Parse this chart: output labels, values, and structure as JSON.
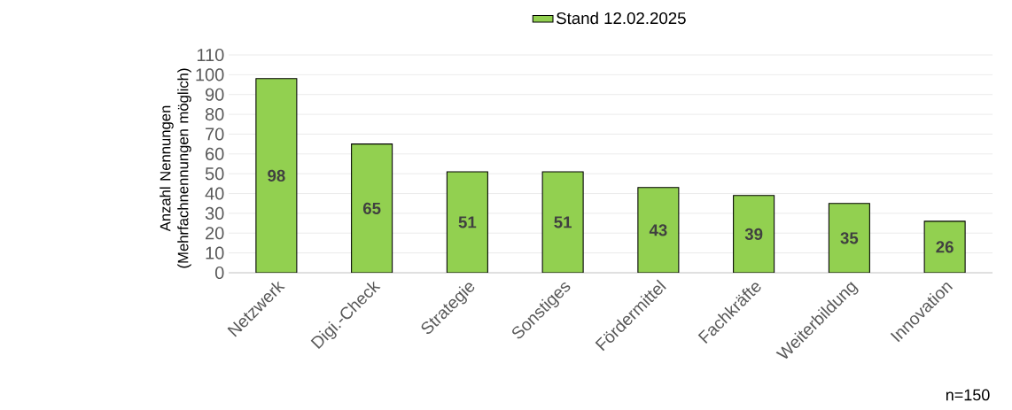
{
  "chart_data": {
    "type": "bar",
    "ylabel": "Anzahl Nennungen (Mehrfachnennungen möglich)",
    "categories": [
      "Netzwerk",
      "Digi.-Check",
      "Strategie",
      "Sonstiges",
      "Fördermittel",
      "Fachkräfte",
      "Weiterbildung",
      "Innovation"
    ],
    "series": [
      {
        "name": "Stand 12.02.2025",
        "color": "#92d050",
        "values": [
          98,
          65,
          51,
          51,
          43,
          39,
          35,
          26
        ]
      }
    ],
    "ylim": [
      0,
      110
    ],
    "yticks": [
      0,
      10,
      20,
      30,
      40,
      50,
      60,
      70,
      80,
      90,
      100,
      110
    ],
    "grid": "y",
    "legend": "top",
    "data_labels": true,
    "annotations": [
      "n=150"
    ]
  }
}
